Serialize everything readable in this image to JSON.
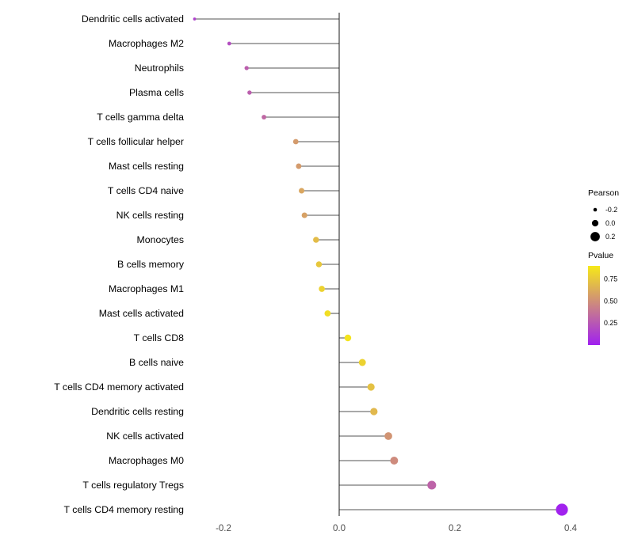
{
  "chart_data": {
    "type": "scatter",
    "subtype": "lollipop",
    "title": "",
    "xlabel": "",
    "ylabel": "",
    "x_axis": {
      "ticks": [
        -0.2,
        0.0,
        0.2,
        0.4
      ],
      "tick_labels": [
        "-0.2",
        "0.0",
        "0.2",
        "0.4"
      ],
      "xlim": [
        -0.29,
        0.43
      ]
    },
    "grid": "off",
    "points": [
      {
        "label": "Dendritic cells activated",
        "pearson": -0.25,
        "pvalue": 0.15
      },
      {
        "label": "Macrophages M2",
        "pearson": -0.19,
        "pvalue": 0.2
      },
      {
        "label": "Neutrophils",
        "pearson": -0.16,
        "pvalue": 0.28
      },
      {
        "label": "Plasma cells",
        "pearson": -0.155,
        "pvalue": 0.28
      },
      {
        "label": "T cells gamma delta",
        "pearson": -0.13,
        "pvalue": 0.32
      },
      {
        "label": "T cells follicular helper",
        "pearson": -0.075,
        "pvalue": 0.55
      },
      {
        "label": "Mast cells resting",
        "pearson": -0.07,
        "pvalue": 0.55
      },
      {
        "label": "T cells CD4 naive",
        "pearson": -0.065,
        "pvalue": 0.6
      },
      {
        "label": "NK cells resting",
        "pearson": -0.06,
        "pvalue": 0.58
      },
      {
        "label": "Monocytes",
        "pearson": -0.04,
        "pvalue": 0.7
      },
      {
        "label": "B cells memory",
        "pearson": -0.035,
        "pvalue": 0.75
      },
      {
        "label": "Macrophages M1",
        "pearson": -0.03,
        "pvalue": 0.8
      },
      {
        "label": "Mast cells activated",
        "pearson": -0.02,
        "pvalue": 0.85
      },
      {
        "label": "T cells CD8",
        "pearson": 0.015,
        "pvalue": 0.88
      },
      {
        "label": "B cells naive",
        "pearson": 0.04,
        "pvalue": 0.8
      },
      {
        "label": "T cells CD4 memory activated",
        "pearson": 0.055,
        "pvalue": 0.72
      },
      {
        "label": "Dendritic cells resting",
        "pearson": 0.06,
        "pvalue": 0.68
      },
      {
        "label": "NK cells activated",
        "pearson": 0.085,
        "pvalue": 0.52
      },
      {
        "label": "Macrophages M0",
        "pearson": 0.095,
        "pvalue": 0.48
      },
      {
        "label": "T cells regulatory  Tregs",
        "pearson": 0.16,
        "pvalue": 0.3
      },
      {
        "label": "T cells CD4 memory resting",
        "pearson": 0.385,
        "pvalue": 0.01
      }
    ],
    "legend": {
      "position": "right",
      "size_legend": {
        "title": "Pearson",
        "entries": [
          {
            "label": "-0.2",
            "value": -0.2
          },
          {
            "label": "0.0",
            "value": 0.0
          },
          {
            "label": "0.2",
            "value": 0.2
          }
        ],
        "dot_color": "#000000"
      },
      "color_legend": {
        "title": "Pvalue",
        "tick_labels": [
          "0.75",
          "0.50",
          "0.25"
        ],
        "tick_values": [
          0.75,
          0.5,
          0.25
        ],
        "bar_top_value": 0.9,
        "bar_bottom_value": 0.0,
        "low_color": "#A020F0",
        "high_color": "#FFFF00"
      }
    },
    "colors": {
      "stem": "#1a1a1a",
      "zero_line": "#1a1a1a",
      "axis_text": "#4d4d4d",
      "background": "#ffffff"
    }
  }
}
